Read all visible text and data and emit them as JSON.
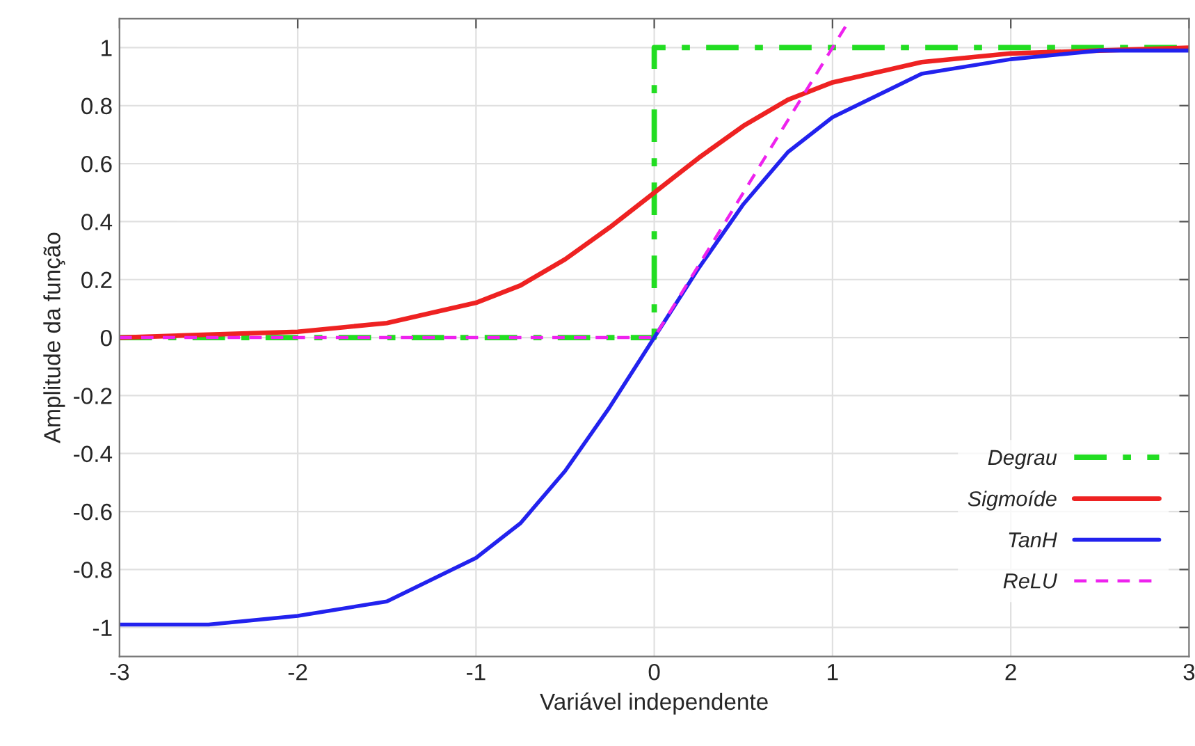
{
  "chart_data": {
    "type": "line",
    "xlabel": "Variável independente",
    "ylabel": "Amplitude da função",
    "xlim": [
      -3,
      3
    ],
    "ylim": [
      -1.1,
      1.1
    ],
    "xticks": [
      -3,
      -2,
      -1,
      0,
      1,
      2,
      3
    ],
    "yticks": [
      1,
      0.8,
      0.6,
      0.4,
      0.2,
      0,
      -0.2,
      -0.4,
      -0.6,
      -0.8,
      -1
    ],
    "grid": true,
    "legend": "bottom right",
    "series": [
      {
        "name": "Degrau",
        "color": "#22dd22",
        "line_style": "dashdot",
        "x": [
          -3,
          0,
          0,
          3
        ],
        "values": [
          0,
          0,
          1,
          1
        ]
      },
      {
        "name": "Sigmoíde",
        "color": "#ee2222",
        "line_style": "solid",
        "x": [
          -3,
          -2.5,
          -2,
          -1.5,
          -1,
          -0.75,
          -0.5,
          -0.25,
          0,
          0.25,
          0.5,
          0.75,
          1,
          1.5,
          2,
          2.5,
          3
        ],
        "values": [
          0.0,
          0.01,
          0.02,
          0.05,
          0.12,
          0.18,
          0.27,
          0.38,
          0.5,
          0.62,
          0.73,
          0.82,
          0.88,
          0.95,
          0.98,
          0.99,
          1.0
        ]
      },
      {
        "name": "TanH",
        "color": "#2222ee",
        "line_style": "solid",
        "x": [
          -3,
          -2.5,
          -2,
          -1.5,
          -1,
          -0.75,
          -0.5,
          -0.25,
          0,
          0.25,
          0.5,
          0.75,
          1,
          1.5,
          2,
          2.5,
          3
        ],
        "values": [
          -0.99,
          -0.99,
          -0.96,
          -0.91,
          -0.76,
          -0.64,
          -0.46,
          -0.24,
          0,
          0.24,
          0.46,
          0.64,
          0.76,
          0.91,
          0.96,
          0.99,
          0.99
        ]
      },
      {
        "name": "ReLU",
        "color": "#ee22ee",
        "line_style": "dashed",
        "x": [
          -3,
          0,
          1.1
        ],
        "values": [
          0,
          0,
          1.1
        ]
      }
    ]
  }
}
